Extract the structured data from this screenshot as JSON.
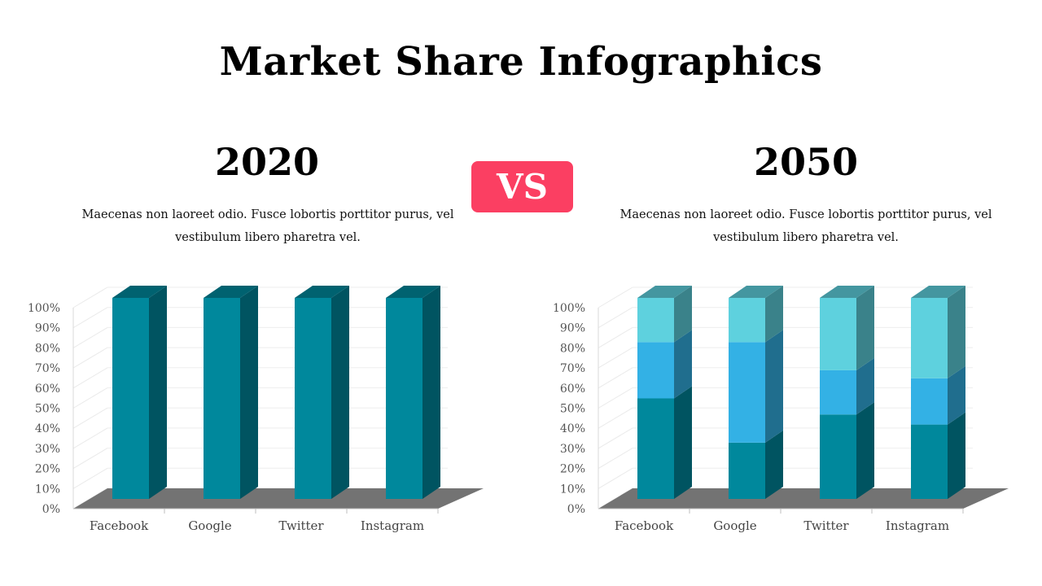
{
  "title": "Market Share Infographics",
  "vs_label": "VS",
  "left": {
    "year": "2020",
    "description": "Maecenas non laoreet odio. Fusce lobortis porttitor purus, vel vestibulum libero pharetra vel."
  },
  "right": {
    "year": "2050",
    "description": "Maecenas non laoreet odio. Fusce lobortis porttitor purus, vel vestibulum libero pharetra vel."
  },
  "chart_data": [
    {
      "type": "bar",
      "stacked": true,
      "three_d": true,
      "title": "2020",
      "categories": [
        "Facebook",
        "Google",
        "Twitter",
        "Instagram"
      ],
      "y_ticks": [
        "0%",
        "10%",
        "20%",
        "30%",
        "40%",
        "50%",
        "60%",
        "70%",
        "80%",
        "90%",
        "100%"
      ],
      "ylim": [
        0,
        100
      ],
      "series": [
        {
          "values": [
            100,
            100,
            100,
            100
          ],
          "color": "#00889c"
        }
      ]
    },
    {
      "type": "bar",
      "stacked": true,
      "three_d": true,
      "title": "2050",
      "categories": [
        "Facebook",
        "Google",
        "Twitter",
        "Instagram"
      ],
      "y_ticks": [
        "0%",
        "10%",
        "20%",
        "30%",
        "40%",
        "50%",
        "60%",
        "70%",
        "80%",
        "90%",
        "100%"
      ],
      "ylim": [
        0,
        100
      ],
      "series": [
        {
          "values": [
            50,
            28,
            42,
            37
          ],
          "color": "#00889c"
        },
        {
          "values": [
            28,
            50,
            22,
            23
          ],
          "color": "#33b1e5"
        },
        {
          "values": [
            22,
            22,
            36,
            40
          ],
          "color": "#5ed1de"
        }
      ]
    }
  ]
}
